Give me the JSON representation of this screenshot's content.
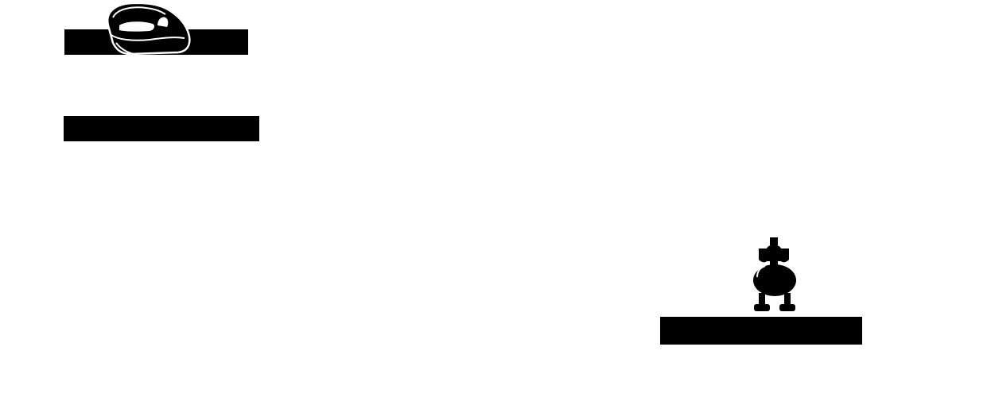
{
  "scene": {
    "background_color": "#ffffff",
    "bar_color": "#000000",
    "sprite_fill": "#000000",
    "sprite_highlight": "#ffffff",
    "platforms": [
      {
        "name": "platform-top-left-upper"
      },
      {
        "name": "platform-top-left-lower"
      },
      {
        "name": "platform-bottom-right"
      }
    ],
    "sprites": [
      {
        "name": "iron-sprite",
        "icon": "iron-icon"
      },
      {
        "name": "robot-sprite",
        "icon": "robot-icon"
      }
    ]
  }
}
